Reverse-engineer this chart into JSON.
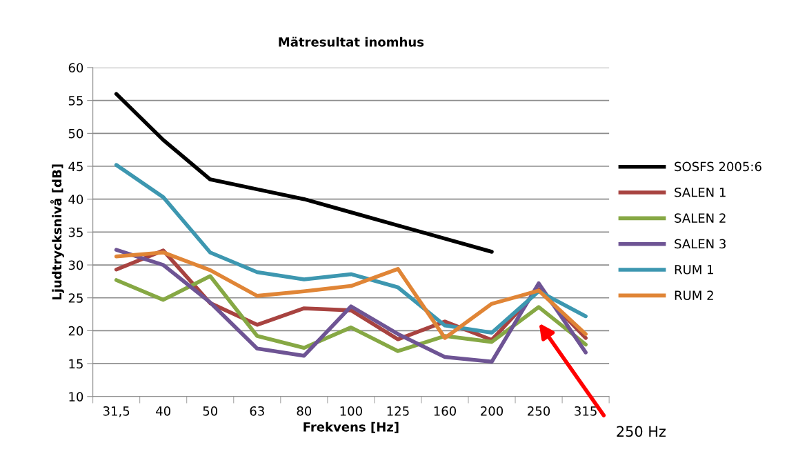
{
  "chart_data": {
    "type": "line",
    "title": "Mätresultat inomhus",
    "xlabel": "Frekvens [Hz]",
    "ylabel": "Ljudtrycksnivå [dB]",
    "categories": [
      "31,5",
      "40",
      "50",
      "63",
      "80",
      "100",
      "125",
      "160",
      "200",
      "250",
      "315"
    ],
    "series": [
      {
        "name": "SOSFS 2005:6",
        "color": "#000000",
        "values": [
          56,
          49,
          43,
          41.5,
          40,
          38,
          36,
          34,
          32,
          null,
          null
        ]
      },
      {
        "name": "SALEN 1",
        "color": "#a84340",
        "values": [
          29.3,
          32.2,
          24.2,
          20.9,
          23.4,
          23.1,
          18.7,
          21.4,
          18.6,
          26.3,
          18.9
        ]
      },
      {
        "name": "SALEN 2",
        "color": "#86a844",
        "values": [
          27.7,
          24.7,
          28.3,
          19.2,
          17.4,
          20.5,
          16.9,
          19.2,
          18.3,
          23.6,
          17.9
        ]
      },
      {
        "name": "SALEN 3",
        "color": "#6e5494",
        "values": [
          32.3,
          30,
          24.3,
          17.3,
          16.2,
          23.7,
          19.5,
          16,
          15.3,
          27.2,
          16.7
        ]
      },
      {
        "name": "RUM 1",
        "color": "#3d97b0",
        "values": [
          45.2,
          40.3,
          31.9,
          28.9,
          27.8,
          28.6,
          26.6,
          20.8,
          19.7,
          26,
          22.2
        ]
      },
      {
        "name": "RUM 2",
        "color": "#e08536",
        "values": [
          31.3,
          31.9,
          29.2,
          25.3,
          26,
          26.8,
          29.4,
          18.9,
          24.1,
          26.1,
          19.5
        ]
      }
    ],
    "ylim": [
      10,
      60
    ],
    "yticks": [
      10,
      15,
      20,
      25,
      30,
      35,
      40,
      45,
      50,
      55,
      60
    ],
    "grid": "y",
    "legend": "right",
    "marker": "none",
    "line_style": "solid",
    "annotations": [
      "250 Hz"
    ]
  }
}
